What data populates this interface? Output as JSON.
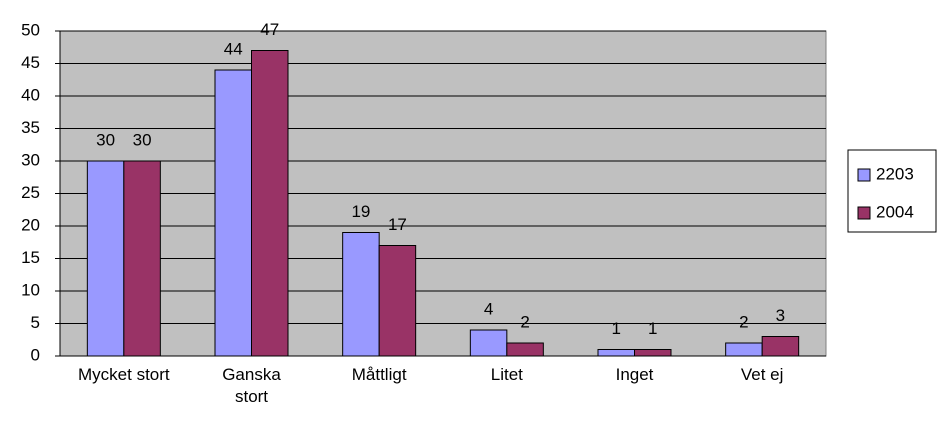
{
  "chart_data": {
    "type": "bar",
    "categories": [
      "Mycket stort",
      "Ganska stort",
      "Måttligt",
      "Litet",
      "Inget",
      "Vet ej"
    ],
    "series": [
      {
        "name": "2203",
        "color": "#9999ff",
        "values": [
          30,
          44,
          19,
          4,
          1,
          2
        ]
      },
      {
        "name": "2004",
        "color": "#993366",
        "values": [
          30,
          47,
          17,
          2,
          1,
          3
        ]
      }
    ],
    "ylim": [
      0,
      50
    ],
    "yticks": [
      0,
      5,
      10,
      15,
      20,
      25,
      30,
      35,
      40,
      45,
      50
    ],
    "grid": true,
    "legend": "right",
    "plot_background": "#c0c0c0"
  }
}
